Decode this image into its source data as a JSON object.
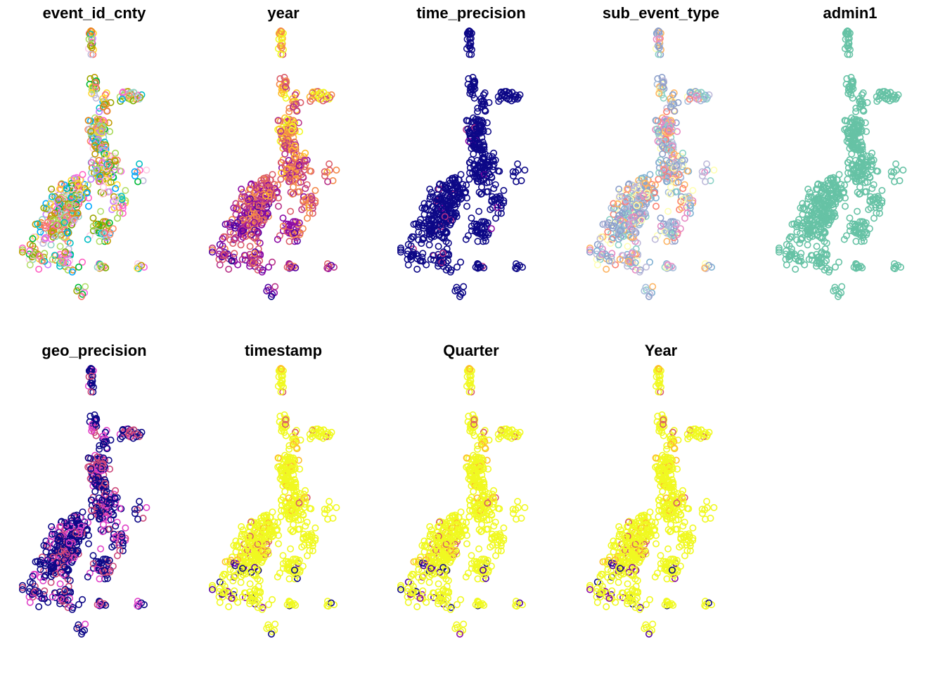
{
  "chart_data": {
    "type": "scatter",
    "subtype": "small-multiple point maps (one panel per attribute, points coloured by attribute value)",
    "panels": [
      {
        "title": "event_id_cnty",
        "palette": "rainbow"
      },
      {
        "title": "year",
        "palette": "plasma"
      },
      {
        "title": "time_precision",
        "palette": "plasma_low"
      },
      {
        "title": "sub_event_type",
        "palette": "set3"
      },
      {
        "title": "admin1",
        "palette": "teal"
      },
      {
        "title": "geo_precision",
        "palette": "plasma_geo"
      },
      {
        "title": "timestamp",
        "palette": "plasma_high"
      },
      {
        "title": "Quarter",
        "palette": "plasma_high"
      },
      {
        "title": "Year",
        "palette": "plasma_high"
      }
    ],
    "layout": {
      "columns": 5,
      "rows": 2
    },
    "axes": "none",
    "legend": "none",
    "grid": false
  },
  "colors": {
    "background": "#ffffff",
    "title": "#000000",
    "rainbow": [
      "#F8766D",
      "#E7861B",
      "#C09B00",
      "#9CA700",
      "#7CAE00",
      "#00BA38",
      "#00BFC4",
      "#00A9FF",
      "#C77CFF",
      "#F564E3",
      "#FF61C3",
      "#FFD92F",
      "#B3DE69",
      "#FCCDE5",
      "#BEBADA",
      "#8DD3C7",
      "#A6D854",
      "#FC8D62"
    ],
    "plasma": [
      "#0D0887",
      "#5302A3",
      "#8B0AA5",
      "#B83289",
      "#DB5C68",
      "#F48849",
      "#FEBC2A",
      "#F0F921"
    ],
    "set3": [
      "#8DA0CB",
      "#8DA0CB",
      "#A6BDDB",
      "#BEBADA",
      "#FB8072",
      "#80B1D3",
      "#FDB462",
      "#FFFFB3",
      "#8DD3C7",
      "#E78AC3"
    ],
    "teal": [
      "#66C2A5"
    ],
    "geo": [
      "#0D0887",
      "#CC4678",
      "#E040C8"
    ]
  }
}
